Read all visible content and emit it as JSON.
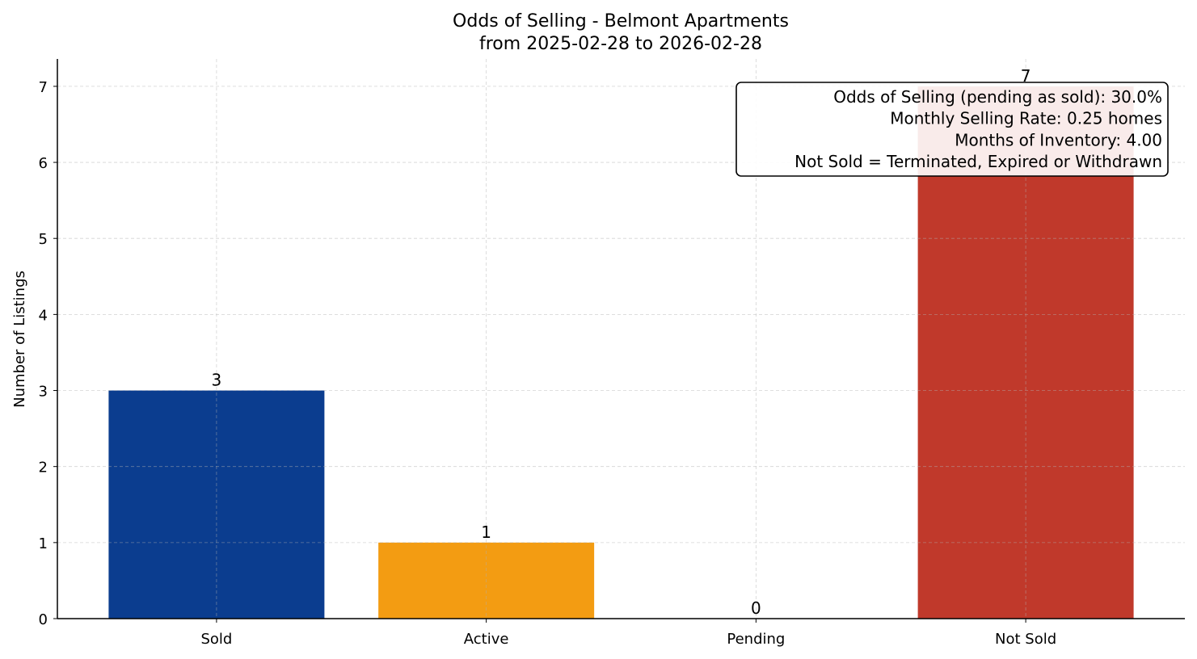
{
  "chart_data": {
    "type": "bar",
    "title": "Odds of Selling - Belmont Apartments",
    "subtitle": "from 2025-02-28 to 2026-02-28",
    "xlabel": "",
    "ylabel": "Number of Listings",
    "categories": [
      "Sold",
      "Active",
      "Pending",
      "Not Sold"
    ],
    "values": [
      3,
      1,
      0,
      7
    ],
    "data_labels": [
      "3",
      "1",
      "0",
      "7"
    ],
    "colors": [
      "#0b3d8f",
      "#f39c12",
      "#8e44ad",
      "#c0392b"
    ],
    "ylim": [
      0,
      7.36
    ],
    "yticks": [
      0,
      1,
      2,
      3,
      4,
      5,
      6,
      7
    ],
    "grid": true,
    "annotation": {
      "lines": [
        "Odds of Selling (pending as sold): 30.0%",
        "Monthly Selling Rate: 0.25 homes",
        "Months of Inventory: 4.00",
        "Not Sold = Terminated, Expired or Withdrawn"
      ],
      "placement": "top-right"
    }
  }
}
